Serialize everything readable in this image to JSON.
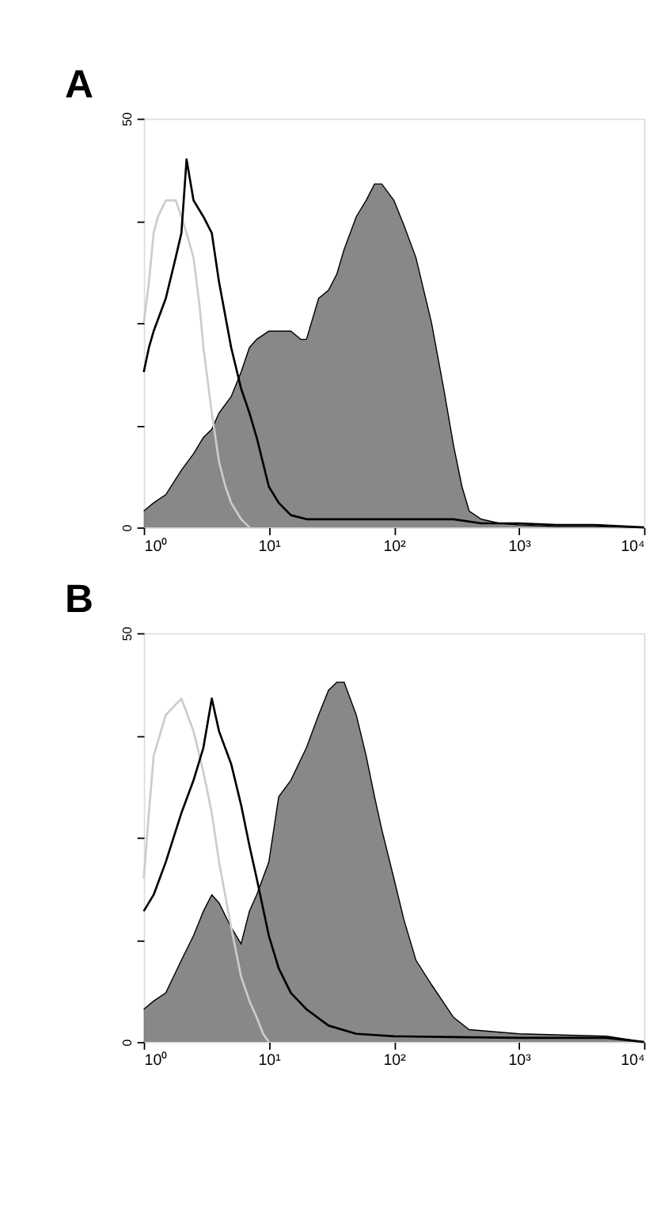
{
  "chart_data": [
    {
      "type": "line",
      "title": "A",
      "log": "x",
      "grid": false,
      "legend": false,
      "xlim": [
        1,
        10000
      ],
      "xticks": [
        {
          "value": 1,
          "label": "10⁰"
        },
        {
          "value": 10,
          "label": "10¹"
        },
        {
          "value": 100,
          "label": "10²"
        },
        {
          "value": 1000,
          "label": "10³"
        },
        {
          "value": 10000,
          "label": "10⁴"
        }
      ],
      "ylim": [
        0,
        50
      ],
      "yticks": [
        0,
        {
          "value": 12.5,
          "label": null
        },
        {
          "value": 25,
          "label": null
        },
        {
          "value": 37.5,
          "label": null
        },
        50
      ],
      "series": [
        {
          "type": "area",
          "color": "#555555",
          "x": [
            1,
            1.2,
            1.5,
            2,
            2.5,
            3,
            3.5,
            4,
            5,
            6,
            7,
            8,
            10,
            12,
            15,
            18,
            20,
            25,
            30,
            35,
            40,
            50,
            60,
            70,
            80,
            100,
            120,
            150,
            200,
            250,
            300,
            350,
            400,
            500,
            700,
            1000,
            2000,
            4000,
            10000
          ],
          "values": [
            2,
            3,
            4,
            7,
            9,
            11,
            12,
            14,
            16,
            19,
            22,
            23,
            24,
            24,
            24,
            23,
            23,
            28,
            29,
            31,
            34,
            38,
            40,
            42,
            42,
            40,
            37,
            33,
            25,
            17,
            10,
            5,
            2,
            1,
            0.5,
            0.3,
            0.1,
            0.1,
            0
          ]
        },
        {
          "type": "line",
          "color": "#cccccc",
          "x": [
            1,
            1.1,
            1.2,
            1.3,
            1.5,
            1.6,
            1.8,
            2,
            2.2,
            2.5,
            2.8,
            3,
            3.5,
            4,
            4.5,
            5,
            6,
            7
          ],
          "values": [
            25,
            30,
            36,
            38,
            40,
            40,
            40,
            38,
            36,
            33,
            27,
            22,
            14,
            8,
            5,
            3,
            1,
            0
          ]
        },
        {
          "type": "line",
          "color": "#000000",
          "x": [
            1,
            1.1,
            1.2,
            1.5,
            1.8,
            2,
            2.2,
            2.5,
            3,
            3.5,
            4,
            5,
            6,
            7,
            8,
            10,
            12,
            15,
            20,
            30,
            50,
            100,
            200,
            300,
            500,
            1000,
            2000,
            4000,
            10000
          ],
          "values": [
            19,
            22,
            24,
            28,
            33,
            36,
            45,
            40,
            38,
            36,
            30,
            22,
            17,
            14,
            11,
            5,
            3,
            1.5,
            1,
            1,
            1,
            1,
            1,
            1,
            0.5,
            0.5,
            0.3,
            0.3,
            0
          ]
        }
      ]
    },
    {
      "type": "line",
      "title": "B",
      "log": "x",
      "grid": false,
      "legend": false,
      "xlim": [
        1,
        10000
      ],
      "xticks": [
        {
          "value": 1,
          "label": "10⁰"
        },
        {
          "value": 10,
          "label": "10¹"
        },
        {
          "value": 100,
          "label": "10²"
        },
        {
          "value": 1000,
          "label": "10³"
        },
        {
          "value": 10000,
          "label": "10⁴"
        }
      ],
      "ylim": [
        0,
        50
      ],
      "yticks": [
        0,
        {
          "value": 12.5,
          "label": null
        },
        {
          "value": 25,
          "label": null
        },
        {
          "value": 37.5,
          "label": null
        },
        50
      ],
      "series": [
        {
          "type": "area",
          "color": "#555555",
          "x": [
            1,
            1.2,
            1.5,
            2,
            2.5,
            3,
            3.5,
            4,
            5,
            6,
            7,
            8,
            10,
            12,
            15,
            20,
            25,
            30,
            35,
            40,
            50,
            60,
            70,
            80,
            100,
            120,
            150,
            200,
            300,
            400,
            1000,
            5000,
            10000
          ],
          "values": [
            4,
            5,
            6,
            10,
            13,
            16,
            18,
            17,
            14,
            12,
            16,
            18,
            22,
            30,
            32,
            36,
            40,
            43,
            44,
            44,
            40,
            35,
            30,
            26,
            20,
            15,
            10,
            7,
            3,
            1.5,
            1,
            0.7,
            0
          ]
        },
        {
          "type": "line",
          "color": "#cccccc",
          "x": [
            1,
            1.1,
            1.2,
            1.5,
            2,
            2.5,
            3,
            3.5,
            4,
            5,
            6,
            7,
            8,
            9,
            10
          ],
          "values": [
            20,
            28,
            35,
            40,
            42,
            38,
            33,
            28,
            22,
            14,
            8,
            5,
            3,
            1,
            0
          ]
        },
        {
          "type": "line",
          "color": "#000000",
          "x": [
            1,
            1.2,
            1.5,
            2,
            2.5,
            3,
            3.5,
            4,
            5,
            6,
            7,
            8,
            10,
            12,
            15,
            20,
            30,
            50,
            100,
            300,
            1000,
            5000,
            10000
          ],
          "values": [
            16,
            18,
            22,
            28,
            32,
            36,
            42,
            38,
            34,
            29,
            24,
            20,
            13,
            9,
            6,
            4,
            2,
            1,
            0.7,
            0.6,
            0.5,
            0.5,
            0
          ]
        }
      ]
    }
  ]
}
